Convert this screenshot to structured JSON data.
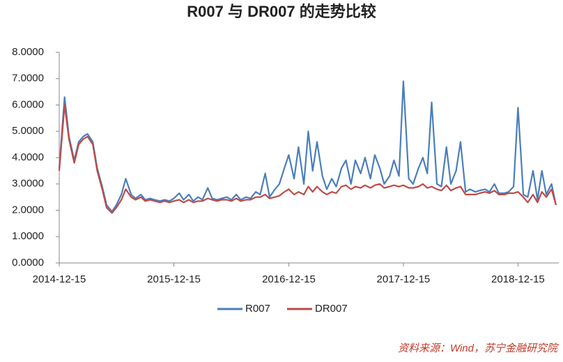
{
  "chart_data": {
    "type": "line",
    "title": "R007 与 DR007 的走势比较",
    "x": [
      "2014-12-15",
      "2015-01-01",
      "2015-01-15",
      "2015-02-01",
      "2015-02-15",
      "2015-03-01",
      "2015-03-15",
      "2015-04-01",
      "2015-04-15",
      "2015-05-01",
      "2015-05-15",
      "2015-06-01",
      "2015-06-15",
      "2015-07-01",
      "2015-07-15",
      "2015-08-01",
      "2015-08-15",
      "2015-09-01",
      "2015-09-15",
      "2015-10-01",
      "2015-10-15",
      "2015-11-01",
      "2015-11-15",
      "2015-12-01",
      "2015-12-15",
      "2016-01-01",
      "2016-01-15",
      "2016-02-01",
      "2016-02-15",
      "2016-03-01",
      "2016-03-15",
      "2016-04-01",
      "2016-04-15",
      "2016-05-01",
      "2016-05-15",
      "2016-06-01",
      "2016-06-15",
      "2016-07-01",
      "2016-07-15",
      "2016-08-01",
      "2016-08-15",
      "2016-09-01",
      "2016-09-15",
      "2016-10-01",
      "2016-10-15",
      "2016-11-01",
      "2016-11-15",
      "2016-12-01",
      "2016-12-15",
      "2017-01-01",
      "2017-01-15",
      "2017-02-01",
      "2017-02-15",
      "2017-03-01",
      "2017-03-15",
      "2017-04-01",
      "2017-04-15",
      "2017-05-01",
      "2017-05-15",
      "2017-06-01",
      "2017-06-15",
      "2017-07-01",
      "2017-07-15",
      "2017-08-01",
      "2017-08-15",
      "2017-09-01",
      "2017-09-15",
      "2017-10-01",
      "2017-10-15",
      "2017-11-01",
      "2017-11-15",
      "2017-12-01",
      "2017-12-15",
      "2018-01-01",
      "2018-01-15",
      "2018-02-01",
      "2018-02-15",
      "2018-03-01",
      "2018-03-15",
      "2018-04-01",
      "2018-04-15",
      "2018-05-01",
      "2018-05-15",
      "2018-06-01",
      "2018-06-15",
      "2018-07-01",
      "2018-07-15",
      "2018-08-01",
      "2018-08-15",
      "2018-09-01",
      "2018-09-15",
      "2018-10-01",
      "2018-10-15",
      "2018-11-01",
      "2018-11-15",
      "2018-12-01",
      "2018-12-15",
      "2019-01-01",
      "2019-01-15",
      "2019-02-01",
      "2019-02-15",
      "2019-03-01",
      "2019-03-15",
      "2019-04-01",
      "2019-04-15"
    ],
    "series": [
      {
        "name": "R007",
        "color": "#4a7ebb",
        "values": [
          3.6,
          6.3,
          4.8,
          3.9,
          4.6,
          4.8,
          4.9,
          4.6,
          3.6,
          2.9,
          2.2,
          1.95,
          2.2,
          2.6,
          3.2,
          2.6,
          2.45,
          2.6,
          2.4,
          2.45,
          2.4,
          2.35,
          2.4,
          2.35,
          2.45,
          2.65,
          2.4,
          2.6,
          2.35,
          2.5,
          2.4,
          2.85,
          2.45,
          2.4,
          2.45,
          2.5,
          2.4,
          2.6,
          2.4,
          2.5,
          2.45,
          2.7,
          2.6,
          3.4,
          2.5,
          2.8,
          3.0,
          3.6,
          4.1,
          3.2,
          4.4,
          3.0,
          5.0,
          3.5,
          4.6,
          3.3,
          2.8,
          3.2,
          2.9,
          3.6,
          3.9,
          3.0,
          3.9,
          3.4,
          4.0,
          3.2,
          4.1,
          3.6,
          3.0,
          3.3,
          3.9,
          3.3,
          6.9,
          3.2,
          3.0,
          3.6,
          4.0,
          3.4,
          6.1,
          3.0,
          2.9,
          4.4,
          3.0,
          3.5,
          4.6,
          2.7,
          2.8,
          2.7,
          2.75,
          2.8,
          2.7,
          3.0,
          2.65,
          2.65,
          2.7,
          2.9,
          5.9,
          2.6,
          2.5,
          3.5,
          2.4,
          3.5,
          2.6,
          3.0,
          2.2
        ]
      },
      {
        "name": "DR007",
        "color": "#be4b48",
        "values": [
          3.5,
          6.0,
          4.7,
          3.8,
          4.5,
          4.7,
          4.8,
          4.5,
          3.5,
          2.8,
          2.1,
          1.9,
          2.1,
          2.4,
          2.8,
          2.5,
          2.4,
          2.5,
          2.35,
          2.4,
          2.35,
          2.3,
          2.35,
          2.3,
          2.35,
          2.4,
          2.3,
          2.4,
          2.3,
          2.35,
          2.35,
          2.45,
          2.4,
          2.35,
          2.4,
          2.4,
          2.35,
          2.45,
          2.35,
          2.4,
          2.4,
          2.5,
          2.5,
          2.6,
          2.45,
          2.5,
          2.55,
          2.7,
          2.8,
          2.6,
          2.7,
          2.6,
          2.9,
          2.7,
          2.9,
          2.7,
          2.6,
          2.7,
          2.65,
          2.9,
          2.95,
          2.8,
          2.9,
          2.85,
          2.95,
          2.85,
          2.95,
          3.0,
          2.85,
          2.9,
          2.95,
          2.9,
          2.95,
          2.85,
          2.85,
          2.9,
          3.0,
          2.85,
          2.9,
          2.8,
          2.75,
          2.95,
          2.75,
          2.85,
          2.9,
          2.6,
          2.6,
          2.6,
          2.65,
          2.7,
          2.65,
          2.75,
          2.6,
          2.6,
          2.65,
          2.65,
          2.7,
          2.5,
          2.3,
          2.6,
          2.3,
          2.7,
          2.5,
          2.8,
          2.2
        ]
      }
    ],
    "xlim": [
      "2014-12-15",
      "2019-04-24"
    ],
    "xticks": [
      "2014-12-15",
      "2015-12-15",
      "2016-12-15",
      "2017-12-15",
      "2018-12-15"
    ],
    "ylim": [
      0,
      8
    ],
    "yticks": [
      {
        "value": 0,
        "label": "0.0000"
      },
      {
        "value": 1,
        "label": "1.0000"
      },
      {
        "value": 2,
        "label": "2.0000"
      },
      {
        "value": 3,
        "label": "3.0000"
      },
      {
        "value": 4,
        "label": "4.0000"
      },
      {
        "value": 5,
        "label": "5.0000"
      },
      {
        "value": 6,
        "label": "6.0000"
      },
      {
        "value": 7,
        "label": "7.0000"
      },
      {
        "value": 8,
        "label": "8.0000"
      }
    ],
    "grid": false,
    "legend": "bottom",
    "source": "资料来源：Wind，苏宁金融研究院"
  }
}
